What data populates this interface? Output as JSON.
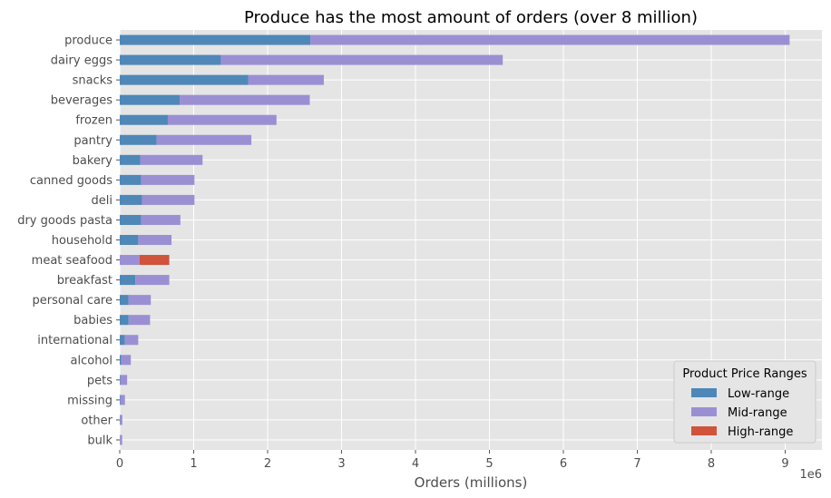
{
  "chart_data": {
    "type": "bar",
    "orientation": "horizontal",
    "stacked": true,
    "title": "Produce has the most amount of orders (over 8 million)",
    "xlabel": "Orders (millions)",
    "ylabel": "",
    "x_offset_label": "1e6",
    "xlim": [
      0,
      9500000
    ],
    "xticks": [
      0,
      1,
      2,
      3,
      4,
      5,
      6,
      7,
      8,
      9
    ],
    "grid": true,
    "legend": {
      "title": "Product Price Ranges",
      "placement": "bottom-right"
    },
    "categories": [
      "produce",
      "dairy eggs",
      "snacks",
      "beverages",
      "frozen",
      "pantry",
      "bakery",
      "canned goods",
      "deli",
      "dry goods pasta",
      "household",
      "meat seafood",
      "breakfast",
      "personal care",
      "babies",
      "international",
      "alcohol",
      "pets",
      "missing",
      "other",
      "bulk"
    ],
    "series": [
      {
        "name": "Low-range",
        "color": "#4f87b8",
        "values": [
          2580000,
          1370000,
          1740000,
          810000,
          650000,
          500000,
          280000,
          290000,
          300000,
          290000,
          250000,
          0,
          210000,
          120000,
          120000,
          70000,
          20000,
          10000,
          10000,
          5000,
          3000
        ]
      },
      {
        "name": "Mid-range",
        "color": "#9b8fd4",
        "values": [
          6480000,
          3810000,
          1020000,
          1760000,
          1470000,
          1280000,
          840000,
          720000,
          710000,
          530000,
          450000,
          270000,
          460000,
          300000,
          290000,
          180000,
          130000,
          90000,
          60000,
          30000,
          30000
        ]
      },
      {
        "name": "High-range",
        "color": "#d0533c",
        "values": [
          0,
          0,
          0,
          0,
          0,
          0,
          0,
          0,
          0,
          0,
          0,
          400000,
          0,
          0,
          0,
          0,
          0,
          0,
          0,
          0,
          0
        ]
      }
    ]
  }
}
